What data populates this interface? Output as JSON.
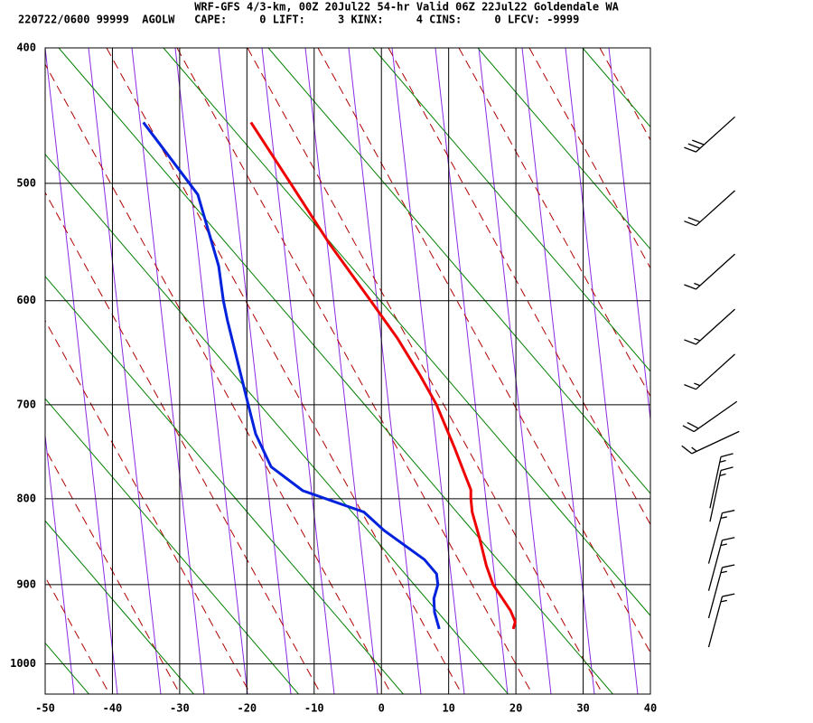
{
  "chart_data": {
    "type": "skew-t",
    "title": "WRF-GFS 4/3-km, 00Z 20Jul22 54-hr Valid 06Z 22Jul22 Goldendale WA",
    "subtitle": "220722/0600 99999  AGOLW   CAPE:     0 LIFT:     3 KINX:     4 CINS:     0 LFCV: -9999",
    "xlim": [
      -50,
      40
    ],
    "xticks": [
      -50,
      -40,
      -30,
      -20,
      -10,
      0,
      10,
      20,
      30,
      40
    ],
    "ylim": [
      400,
      1040
    ],
    "yticks": [
      400,
      500,
      600,
      700,
      800,
      900,
      1000
    ],
    "grid": true,
    "series": [
      {
        "color": "#ee0000",
        "x": [
          -19.4,
          -13.5,
          -7.7,
          -1.6,
          2.4,
          5.7,
          8.2,
          10.9,
          12.5,
          13.3,
          13.3,
          13.5,
          14.6,
          15.6,
          16.6,
          18.0,
          19.2,
          19.9,
          19.6
        ],
        "values": [
          453,
          500,
          550,
          600,
          635,
          670,
          700,
          745,
          775,
          790,
          800,
          815,
          845,
          877,
          900,
          917,
          932,
          946,
          955
        ]
      },
      {
        "color": "#0022dd",
        "x": [
          -35.4,
          -30.1,
          -27.3,
          -24.2,
          -23.5,
          -22.9,
          -19.8,
          -18.7,
          -16.4,
          -11.7,
          -2.6,
          0.4,
          6.4,
          8.2,
          8.4,
          7.8,
          7.9,
          8.6
        ],
        "values": [
          453,
          489,
          509,
          569,
          600,
          618,
          700,
          730,
          765,
          791,
          815,
          836,
          870,
          887,
          900,
          917,
          934,
          955
        ]
      }
    ],
    "wind_barbs": {
      "pressure": [
        462,
        520,
        574,
        624,
        667,
        712,
        739,
        782,
        797,
        845,
        877,
        910,
        946
      ],
      "direction": [
        228,
        228,
        228,
        228,
        228,
        235,
        245,
        12,
        12,
        15,
        15,
        15,
        15
      ],
      "speed": [
        30,
        20,
        15,
        15,
        15,
        20,
        15,
        15,
        15,
        15,
        15,
        15,
        15
      ]
    }
  }
}
